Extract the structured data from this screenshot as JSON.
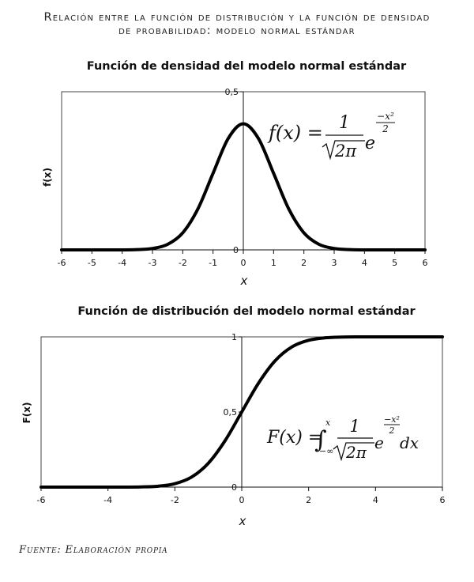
{
  "page": {
    "title_line1": "Relación entre la función de distribución y la función de densidad",
    "title_line2": "de probabilidad: modelo normal estándar",
    "source": "Fuente: Elaboración propia"
  },
  "chart_data": [
    {
      "type": "line",
      "title": "Función de densidad del modelo normal estándar",
      "xlabel": "x",
      "ylabel": "f(x)",
      "xlim": [
        -6,
        6
      ],
      "ylim": [
        0,
        0.5
      ],
      "xticks": [
        "-6",
        "-5",
        "-4",
        "-3",
        "-2",
        "-1",
        "0",
        "1",
        "2",
        "3",
        "4",
        "5",
        "6"
      ],
      "xtick_values": [
        -6,
        -5,
        -4,
        -3,
        -2,
        -1,
        0,
        1,
        2,
        3,
        4,
        5,
        6
      ],
      "yticks": [
        "0",
        "0,5"
      ],
      "ytick_values": [
        0,
        0.5
      ],
      "series": [
        {
          "x": [
            -6,
            -5,
            -4,
            -3.5,
            -3,
            -2.5,
            -2,
            -1.5,
            -1,
            -0.5,
            0,
            0.5,
            1,
            1.5,
            2,
            2.5,
            3,
            3.5,
            4,
            5,
            6
          ],
          "y": [
            0,
            0,
            0.0001,
            0.0009,
            0.0044,
            0.0175,
            0.054,
            0.1295,
            0.242,
            0.3521,
            0.3989,
            0.3521,
            0.242,
            0.1295,
            0.054,
            0.0175,
            0.0044,
            0.0009,
            0.0001,
            0,
            0
          ]
        }
      ],
      "formula": {
        "lhs": "f(x) =",
        "numerator": "1",
        "denominator": "2π",
        "base": "e",
        "exp_numerator": "−x²",
        "exp_denominator": "2"
      }
    },
    {
      "type": "line",
      "title": "Función de distribución del modelo normal estándar",
      "xlabel": "x",
      "ylabel": "F(x)",
      "xlim": [
        -6,
        6
      ],
      "ylim": [
        0,
        1
      ],
      "xticks": [
        "-6",
        "-4",
        "-2",
        "0",
        "2",
        "4",
        "6"
      ],
      "xtick_values": [
        -6,
        -4,
        -2,
        0,
        2,
        4,
        6
      ],
      "yticks": [
        "0",
        "0,5",
        "1"
      ],
      "ytick_values": [
        0,
        0.5,
        1
      ],
      "series": [
        {
          "x": [
            -6,
            -5,
            -4,
            -3.5,
            -3,
            -2.5,
            -2,
            -1.5,
            -1,
            -0.5,
            0,
            0.5,
            1,
            1.5,
            2,
            2.5,
            3,
            3.5,
            4,
            5,
            6
          ],
          "y": [
            0,
            0,
            0,
            0.0002,
            0.0013,
            0.0062,
            0.0228,
            0.0668,
            0.1587,
            0.3085,
            0.5,
            0.6915,
            0.8413,
            0.9332,
            0.9772,
            0.9938,
            0.9987,
            0.9998,
            1,
            1,
            1
          ]
        }
      ],
      "formula": {
        "lhs": "F(x) =",
        "integral": "∫",
        "upper": "x",
        "lower": "−∞",
        "numerator": "1",
        "denominator": "2π",
        "base": "e",
        "exp_numerator": "−x²",
        "exp_denominator": "2",
        "differential": "dx"
      }
    }
  ]
}
